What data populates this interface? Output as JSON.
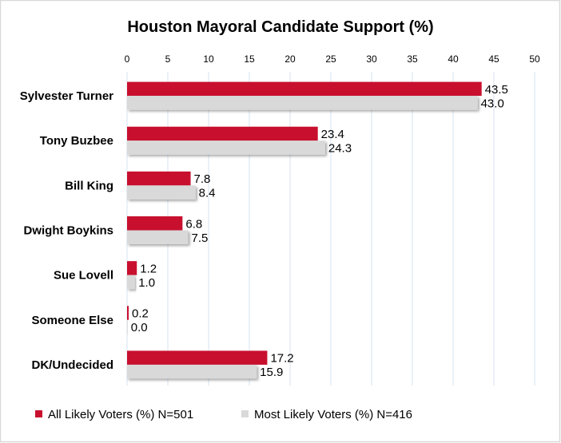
{
  "chart_data": {
    "type": "bar",
    "orientation": "horizontal",
    "title": "Houston Mayoral Candidate Support (%)",
    "xlabel": "",
    "ylabel": "",
    "xlim": [
      0,
      50
    ],
    "x_ticks": [
      0,
      5,
      10,
      15,
      20,
      25,
      30,
      35,
      40,
      45,
      50
    ],
    "x_axis_position": "top",
    "grid": true,
    "legend_position": "bottom",
    "categories": [
      "Sylvester Turner",
      "Tony Buzbee",
      "Bill King",
      "Dwight Boykins",
      "Sue Lovell",
      "Someone Else",
      "DK/Undecided"
    ],
    "series": [
      {
        "name": "All Likely Voters (%) N=501",
        "color": "#C8102E",
        "values": [
          43.5,
          23.4,
          7.8,
          6.8,
          1.2,
          0.2,
          17.2
        ],
        "labels": [
          "43.5",
          "23.4",
          "7.8",
          "6.8",
          "1.2",
          "0.2",
          "17.2"
        ]
      },
      {
        "name": "Most Likely Voters (%) N=416",
        "color": "#D9D9D9",
        "values": [
          43.0,
          24.3,
          8.4,
          7.5,
          1.0,
          0.0,
          15.9
        ],
        "labels": [
          "43.0",
          "24.3",
          "8.4",
          "7.5",
          "1.0",
          "0.0",
          "15.9"
        ]
      }
    ],
    "grid_color": "#D6E3F0"
  }
}
